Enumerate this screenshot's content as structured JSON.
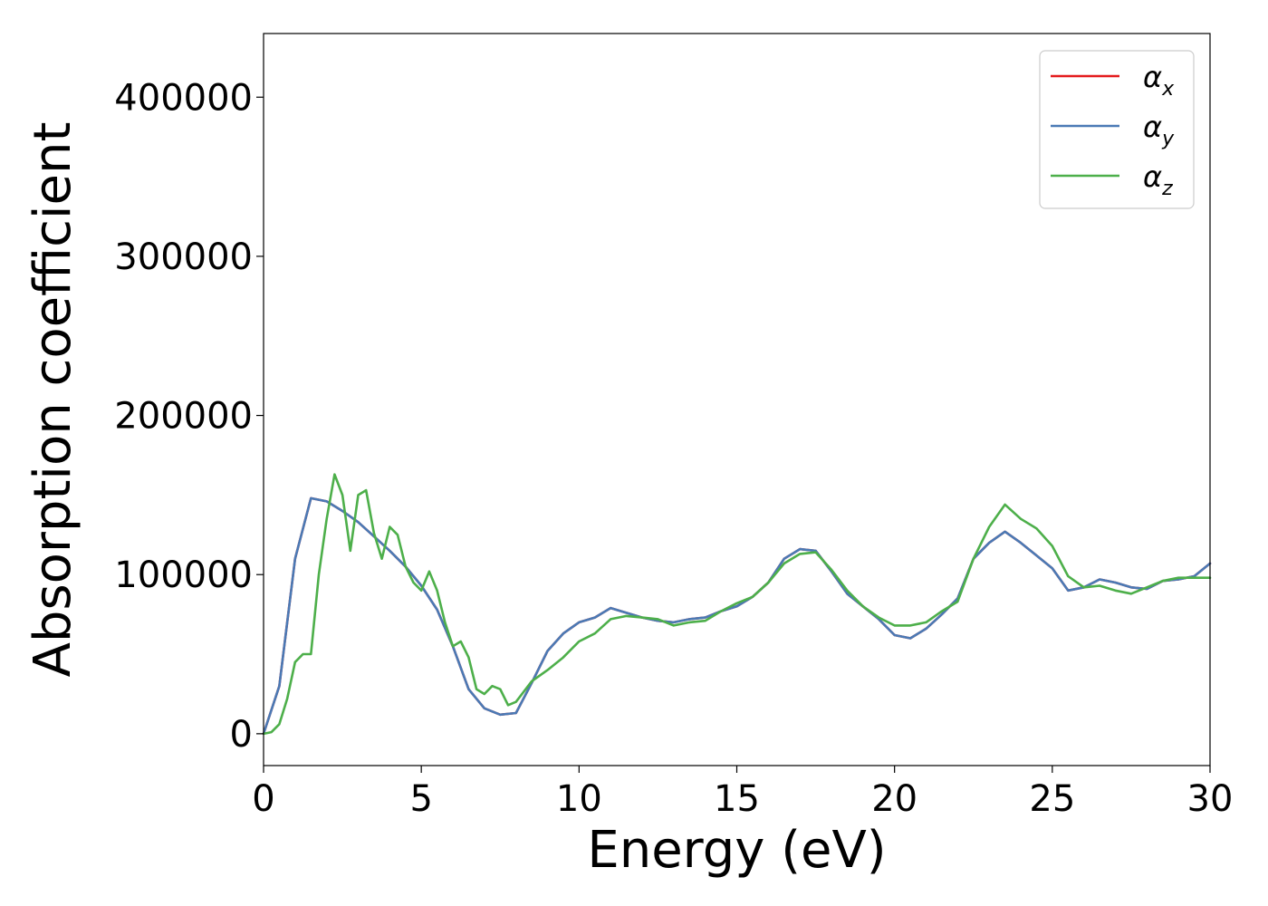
{
  "chart_data": {
    "type": "line",
    "xlabel": "Energy (eV)",
    "ylabel": "Absorption coefficient",
    "xlim": [
      0,
      30
    ],
    "ylim": [
      -20000,
      440000
    ],
    "xticks": [
      0,
      5,
      10,
      15,
      20,
      25,
      30
    ],
    "yticks": [
      0,
      100000,
      200000,
      300000,
      400000
    ],
    "xtick_labels": [
      "0",
      "5",
      "10",
      "15",
      "20",
      "25",
      "30"
    ],
    "ytick_labels": [
      "0",
      "100000",
      "200000",
      "300000",
      "400000"
    ],
    "grid": false,
    "legend_position": "top-right",
    "series": [
      {
        "name": "α",
        "subscript": "x",
        "color": "#e41a1c",
        "x": [
          0,
          0.5,
          1.0,
          1.5,
          2.0,
          2.5,
          3.0,
          3.5,
          4.0,
          4.5,
          5.0,
          5.5,
          6.0,
          6.5,
          7.0,
          7.5,
          8.0,
          8.5,
          9.0,
          9.5,
          10.0,
          10.5,
          11.0,
          11.5,
          12.0,
          12.5,
          13.0,
          13.5,
          14.0,
          14.5,
          15.0,
          15.5,
          16.0,
          16.5,
          17.0,
          17.5,
          18.0,
          18.5,
          19.0,
          19.5,
          20.0,
          20.5,
          21.0,
          21.5,
          22.0,
          22.5,
          23.0,
          23.5,
          24.0,
          24.5,
          25.0,
          25.5,
          26.0,
          26.5,
          27.0,
          27.5,
          28.0,
          28.5,
          29.0,
          29.5,
          30.0
        ],
        "y": [
          0,
          30000,
          110000,
          148000,
          146000,
          140000,
          133000,
          124000,
          115000,
          105000,
          93000,
          78000,
          55000,
          28000,
          16000,
          12000,
          13000,
          32000,
          52000,
          63000,
          70000,
          73000,
          79000,
          76000,
          73000,
          71000,
          70000,
          72000,
          73000,
          77000,
          80000,
          86000,
          95000,
          110000,
          116000,
          115000,
          102000,
          88000,
          80000,
          72000,
          62000,
          60000,
          66000,
          75000,
          85000,
          110000,
          120000,
          127000,
          120000,
          112000,
          104000,
          90000,
          92000,
          97000,
          95000,
          92000,
          91000,
          96000,
          97000,
          99000,
          107000
        ]
      },
      {
        "name": "α",
        "subscript": "y",
        "color": "#4a7ab5",
        "x": [
          0,
          0.5,
          1.0,
          1.5,
          2.0,
          2.5,
          3.0,
          3.5,
          4.0,
          4.5,
          5.0,
          5.5,
          6.0,
          6.5,
          7.0,
          7.5,
          8.0,
          8.5,
          9.0,
          9.5,
          10.0,
          10.5,
          11.0,
          11.5,
          12.0,
          12.5,
          13.0,
          13.5,
          14.0,
          14.5,
          15.0,
          15.5,
          16.0,
          16.5,
          17.0,
          17.5,
          18.0,
          18.5,
          19.0,
          19.5,
          20.0,
          20.5,
          21.0,
          21.5,
          22.0,
          22.5,
          23.0,
          23.5,
          24.0,
          24.5,
          25.0,
          25.5,
          26.0,
          26.5,
          27.0,
          27.5,
          28.0,
          28.5,
          29.0,
          29.5,
          30.0
        ],
        "y": [
          0,
          30000,
          110000,
          148000,
          146000,
          140000,
          133000,
          124000,
          115000,
          105000,
          93000,
          78000,
          55000,
          28000,
          16000,
          12000,
          13000,
          32000,
          52000,
          63000,
          70000,
          73000,
          79000,
          76000,
          73000,
          71000,
          70000,
          72000,
          73000,
          77000,
          80000,
          86000,
          95000,
          110000,
          116000,
          115000,
          102000,
          88000,
          80000,
          72000,
          62000,
          60000,
          66000,
          75000,
          85000,
          110000,
          120000,
          127000,
          120000,
          112000,
          104000,
          90000,
          92000,
          97000,
          95000,
          92000,
          91000,
          96000,
          97000,
          99000,
          107000
        ]
      },
      {
        "name": "α",
        "subscript": "z",
        "color": "#4daf4a",
        "x": [
          0,
          0.25,
          0.5,
          0.75,
          1.0,
          1.25,
          1.5,
          1.75,
          2.0,
          2.25,
          2.5,
          2.75,
          3.0,
          3.25,
          3.5,
          3.75,
          4.0,
          4.25,
          4.5,
          4.75,
          5.0,
          5.25,
          5.5,
          5.75,
          6.0,
          6.25,
          6.5,
          6.75,
          7.0,
          7.25,
          7.5,
          7.75,
          8.0,
          8.5,
          9.0,
          9.5,
          10.0,
          10.5,
          11.0,
          11.5,
          12.0,
          12.5,
          13.0,
          13.5,
          14.0,
          14.5,
          15.0,
          15.5,
          16.0,
          16.5,
          17.0,
          17.5,
          18.0,
          18.5,
          19.0,
          19.5,
          20.0,
          20.5,
          21.0,
          21.5,
          22.0,
          22.5,
          23.0,
          23.5,
          24.0,
          24.5,
          25.0,
          25.5,
          26.0,
          26.5,
          27.0,
          27.5,
          28.0,
          28.5,
          29.0,
          29.5,
          30.0
        ],
        "y": [
          0,
          1000,
          6000,
          22000,
          45000,
          50000,
          50000,
          100000,
          135000,
          163000,
          150000,
          115000,
          150000,
          153000,
          126000,
          110000,
          130000,
          125000,
          105000,
          95000,
          90000,
          102000,
          90000,
          70000,
          55000,
          58000,
          48000,
          28000,
          25000,
          30000,
          28000,
          18000,
          20000,
          33000,
          40000,
          48000,
          58000,
          63000,
          72000,
          74000,
          73000,
          72000,
          68000,
          70000,
          71000,
          77000,
          82000,
          86000,
          95000,
          107000,
          113000,
          114000,
          103000,
          90000,
          80000,
          73000,
          68000,
          68000,
          70000,
          77000,
          83000,
          110000,
          130000,
          144000,
          135000,
          129000,
          118000,
          99000,
          92000,
          93000,
          90000,
          88000,
          92000,
          96000,
          98000,
          98000,
          98000
        ]
      }
    ]
  }
}
